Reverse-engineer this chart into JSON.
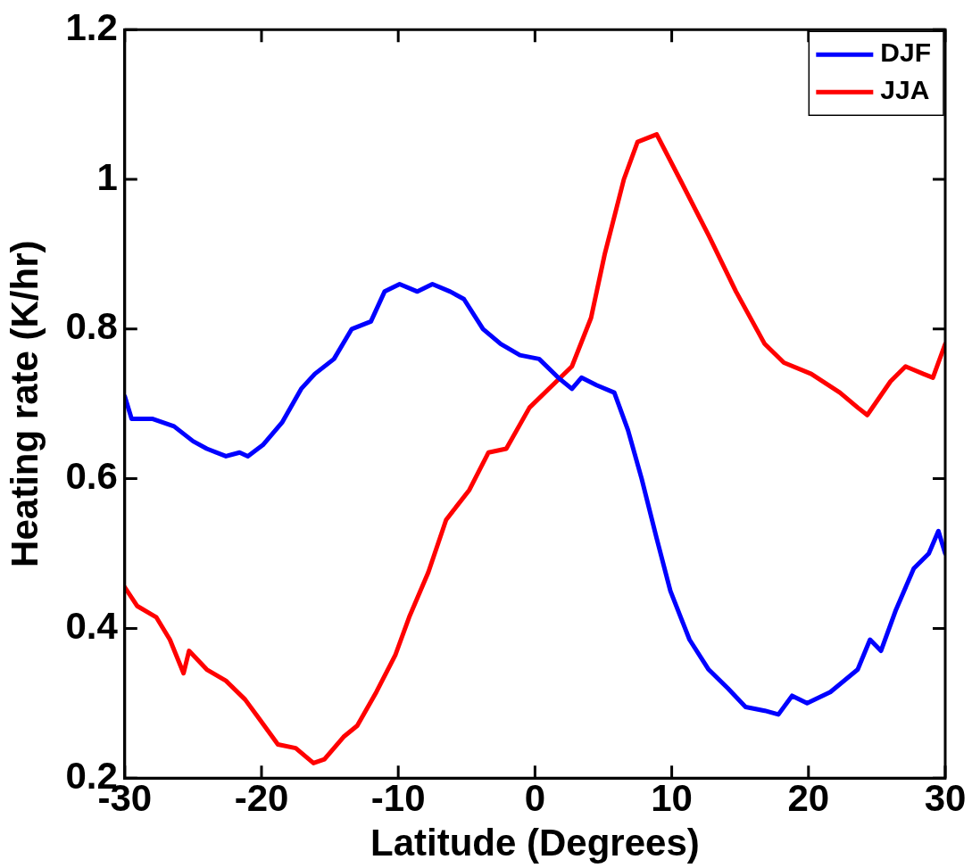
{
  "chart_data": {
    "type": "line",
    "xlabel": "Latitude (Degrees)",
    "ylabel": "Heating rate (K/hr)",
    "xlim": [
      -30,
      30
    ],
    "xticks": [
      -30,
      -20,
      -10,
      0,
      10,
      20,
      30
    ],
    "ylim": [
      0.2,
      1.2
    ],
    "yticks": [
      0.2,
      0.4,
      0.6,
      0.8,
      1,
      1.2
    ],
    "grid": false,
    "legend": "top right",
    "marker": "none",
    "line_style": "solid",
    "series": [
      {
        "name": "DJF",
        "color": "#0000ff",
        "x": [
          -30,
          -29.5,
          -28,
          -26.4,
          -25,
          -24,
          -22.6,
          -21.6,
          -21,
          -19.9,
          -18.5,
          -17.1,
          -16.1,
          -14.7,
          -13.4,
          -12,
          -11,
          -9.9,
          -8.6,
          -7.5,
          -6.2,
          -5.2,
          -3.8,
          -2.5,
          -1.1,
          0.3,
          1.7,
          2.7,
          3.4,
          4.5,
          5.8,
          6.8,
          7.8,
          8.9,
          9.9,
          11.3,
          12.7,
          14.1,
          15.4,
          16.8,
          17.8,
          18.8,
          19.9,
          21.6,
          23.6,
          24.5,
          25.3,
          26.4,
          27.7,
          28.8,
          29.5,
          30
        ],
        "values": [
          0.71,
          0.68,
          0.68,
          0.67,
          0.65,
          0.64,
          0.63,
          0.635,
          0.63,
          0.645,
          0.675,
          0.72,
          0.74,
          0.76,
          0.8,
          0.81,
          0.85,
          0.86,
          0.85,
          0.86,
          0.85,
          0.84,
          0.8,
          0.78,
          0.765,
          0.76,
          0.735,
          0.72,
          0.735,
          0.725,
          0.715,
          0.665,
          0.6,
          0.52,
          0.45,
          0.385,
          0.345,
          0.32,
          0.295,
          0.29,
          0.285,
          0.31,
          0.3,
          0.315,
          0.345,
          0.385,
          0.37,
          0.425,
          0.48,
          0.5,
          0.53,
          0.5
        ]
      },
      {
        "name": "JJA",
        "color": "#ff0000",
        "x": [
          -30,
          -29.1,
          -27.7,
          -26.7,
          -25.7,
          -25.3,
          -24,
          -22.6,
          -21.2,
          -20.2,
          -18.8,
          -17.5,
          -16.2,
          -15.4,
          -14,
          -13,
          -11.6,
          -10.2,
          -9.2,
          -7.8,
          -6.5,
          -4.8,
          -3.4,
          -2.1,
          -0.4,
          1,
          2.7,
          4.1,
          5.1,
          6.5,
          7.5,
          8.9,
          10.6,
          12.7,
          14.7,
          16.8,
          18.2,
          20.2,
          22.3,
          23.6,
          24.3,
          26,
          27.1,
          28.4,
          29.1,
          30
        ],
        "values": [
          0.455,
          0.43,
          0.415,
          0.385,
          0.34,
          0.37,
          0.345,
          0.33,
          0.305,
          0.28,
          0.245,
          0.24,
          0.22,
          0.225,
          0.255,
          0.27,
          0.315,
          0.365,
          0.415,
          0.475,
          0.545,
          0.585,
          0.635,
          0.64,
          0.695,
          0.72,
          0.75,
          0.815,
          0.9,
          1,
          1.05,
          1.06,
          1,
          0.925,
          0.85,
          0.78,
          0.755,
          0.74,
          0.715,
          0.695,
          0.685,
          0.73,
          0.75,
          0.74,
          0.735,
          0.78
        ]
      }
    ]
  }
}
